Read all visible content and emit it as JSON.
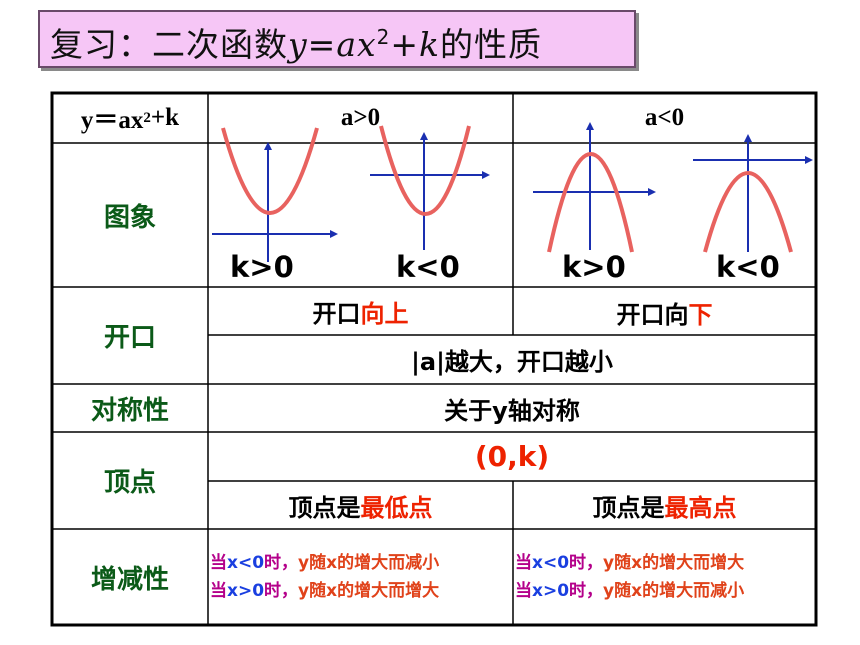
{
  "title": {
    "prefix": "复习：二次函数",
    "func_y": "y",
    "func_eq": "=",
    "func_ax": "ax",
    "func_exp": "2",
    "func_plus": "+",
    "func_k": "k",
    "suffix": "的性质"
  },
  "header": {
    "col0_a": "y＝ax",
    "col0_exp": "2",
    "col0_b": "+k",
    "col1": "a>0",
    "col2": "a<0"
  },
  "rows": {
    "graph": {
      "label": "图象",
      "k_labels": [
        "k>0",
        "k<0",
        "k>0",
        "k<0"
      ]
    },
    "opening": {
      "label": "开口",
      "pos_a": "开口",
      "pos_b": "向上",
      "neg_a": "开口向",
      "neg_b": "下",
      "size_rule": "|a|越大，开口越小"
    },
    "symmetry": {
      "label": "对称性",
      "text": "关于y轴对称"
    },
    "vertex": {
      "label": "顶点",
      "coord": "(0,k)",
      "pos_a": "顶点是",
      "pos_b": "最低点",
      "neg_a": "顶点是",
      "neg_b": "最高点"
    },
    "monotonic": {
      "label": "增减性",
      "pos_line1": [
        "当",
        "x<0",
        "时，",
        "y随x的增大而减小"
      ],
      "pos_line2": [
        "当",
        "x>0",
        "时，",
        "y随x的增大而增大"
      ],
      "neg_line1": [
        "当",
        "x<0",
        "时，",
        "y随x的增大而增大"
      ],
      "neg_line2": [
        "当",
        "x>0",
        "时，",
        "y随x的增大而减小"
      ]
    }
  },
  "colors": {
    "title_bg": "#f6c6f6",
    "row_label": "#0b5a18",
    "highlight": "#ee2200",
    "curve": "#e8625f",
    "axis": "#1a2fb0",
    "cond_blue": "#1a3fe0",
    "cond_orange": "#e0421a",
    "prefix_purple": "#b4008a"
  }
}
